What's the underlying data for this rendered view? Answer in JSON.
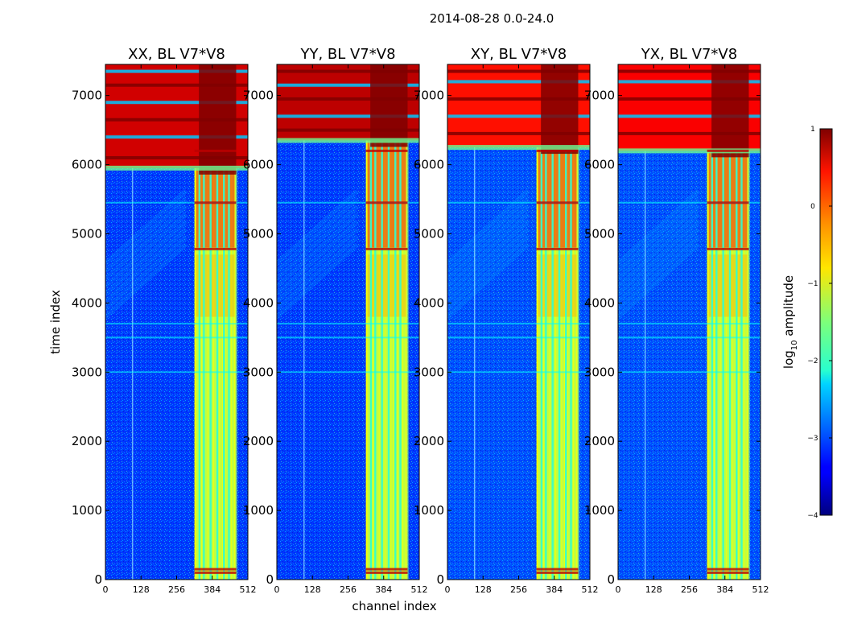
{
  "chart_data": {
    "type": "heatmap",
    "title": "2014-08-28 0.0-24.0",
    "xlabel": "channel index",
    "ylabel": "time index",
    "xlim": [
      0,
      512
    ],
    "ylim": [
      0,
      7450
    ],
    "xticks": [
      0,
      128,
      256,
      384,
      512
    ],
    "yticks": [
      0,
      1000,
      2000,
      3000,
      4000,
      5000,
      6000,
      7000
    ],
    "colorbar": {
      "label_main": "log",
      "label_sub": "10",
      "label_tail": " amplitude",
      "ticks": [
        1,
        0,
        -1,
        -2,
        -3,
        -4
      ],
      "tick_labels": [
        "1",
        "0",
        "−1",
        "−2",
        "−3",
        "−4"
      ],
      "range": [
        -4,
        1
      ],
      "colormap": "jet"
    },
    "panels": [
      {
        "title": "XX, BL V7*V8",
        "background": -3.1,
        "band_start": 5950,
        "band_level": 0.6,
        "horizontal_rfi": [
          6100,
          6400,
          6650,
          6900,
          7150,
          7350
        ]
      },
      {
        "title": "YY, BL V7*V8",
        "background": -3.1,
        "band_start": 6350,
        "band_level": 0.7,
        "horizontal_rfi": [
          6500,
          6700,
          6950,
          7150,
          7350
        ]
      },
      {
        "title": "XY, BL V7*V8",
        "background": -3.0,
        "band_start": 6250,
        "band_level": 0.3,
        "horizontal_rfi": [
          6450,
          6700,
          6950,
          7200,
          7350
        ]
      },
      {
        "title": "YX, BL V7*V8",
        "background": -3.0,
        "band_start": 6200,
        "band_level": 0.4,
        "horizontal_rfi": [
          6450,
          6700,
          6950,
          7200,
          7350
        ]
      }
    ],
    "vertical_rfi_channels": [
      338,
      354,
      378,
      402,
      426,
      444
    ],
    "channel_band": [
      320,
      470
    ]
  }
}
